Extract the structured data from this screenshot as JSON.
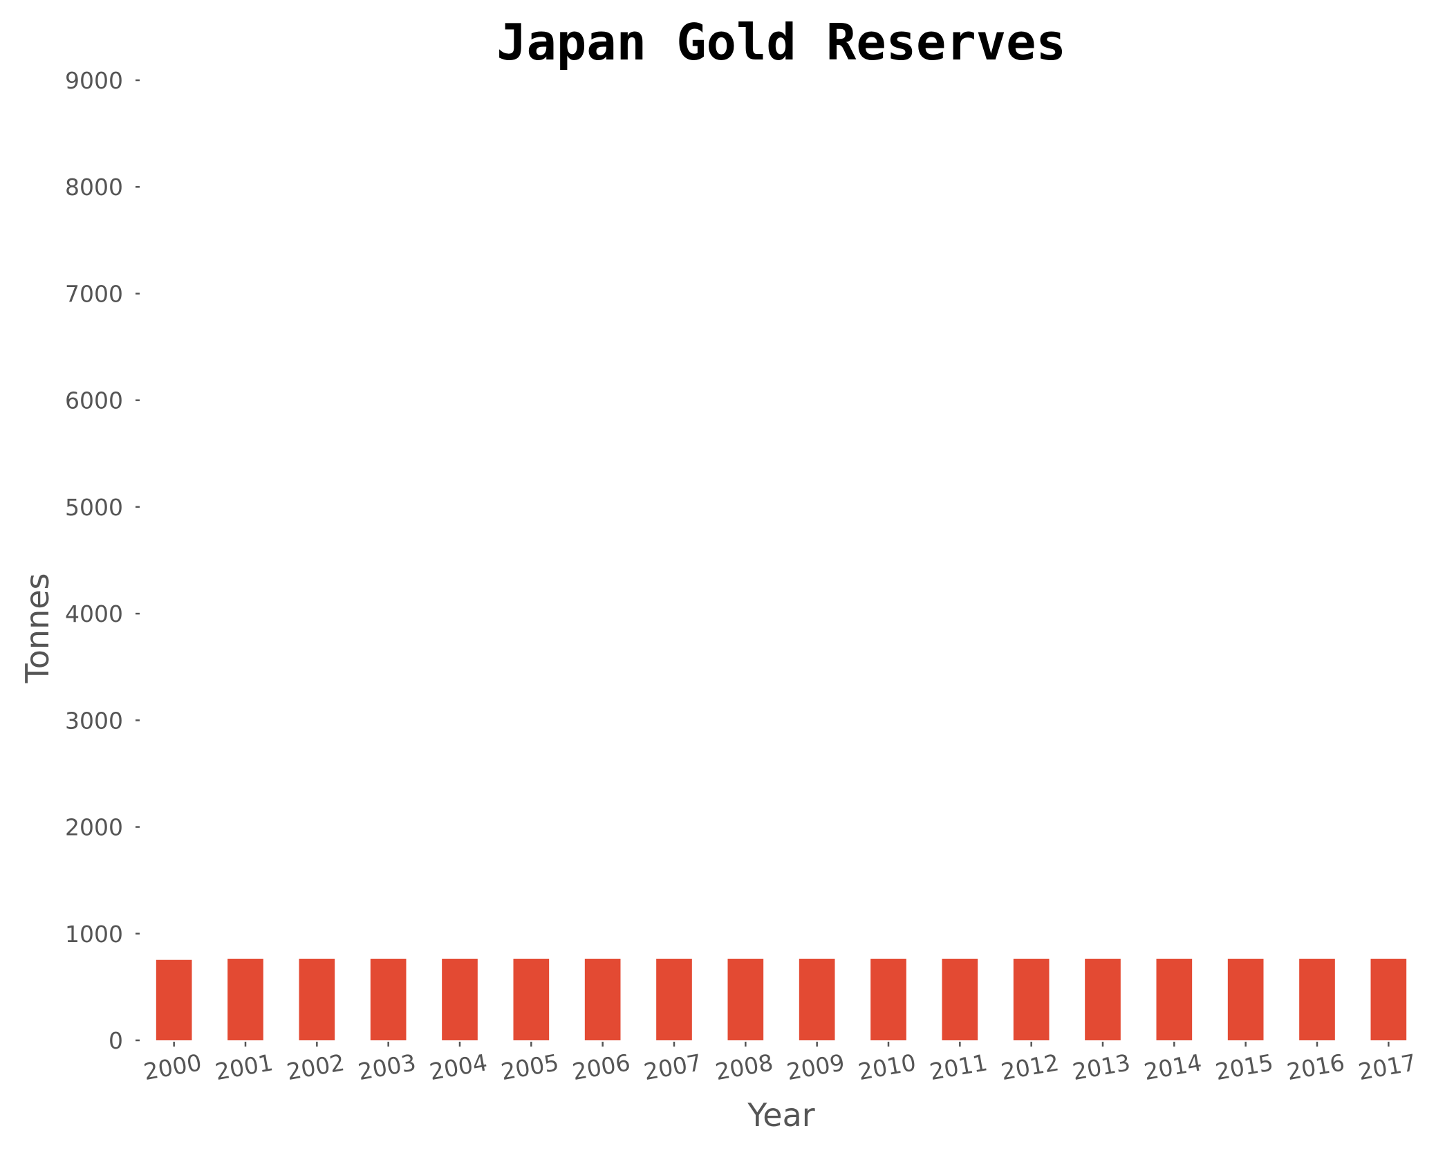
{
  "chart_data": {
    "type": "bar",
    "title": "Japan Gold Reserves",
    "xlabel": "Year",
    "ylabel": "Tonnes",
    "categories": [
      "2000",
      "2001",
      "2002",
      "2003",
      "2004",
      "2005",
      "2006",
      "2007",
      "2008",
      "2009",
      "2010",
      "2011",
      "2012",
      "2013",
      "2014",
      "2015",
      "2016",
      "2017"
    ],
    "values": [
      754,
      765,
      765,
      765,
      765,
      765,
      765,
      765,
      765,
      765,
      765,
      765,
      765,
      765,
      765,
      765,
      765,
      765
    ],
    "ylim": [
      0,
      9000
    ],
    "yticks": [
      0,
      1000,
      2000,
      3000,
      4000,
      5000,
      6000,
      7000,
      8000,
      9000
    ],
    "bar_color": "#e34a33",
    "grid": false,
    "legend": "none"
  }
}
